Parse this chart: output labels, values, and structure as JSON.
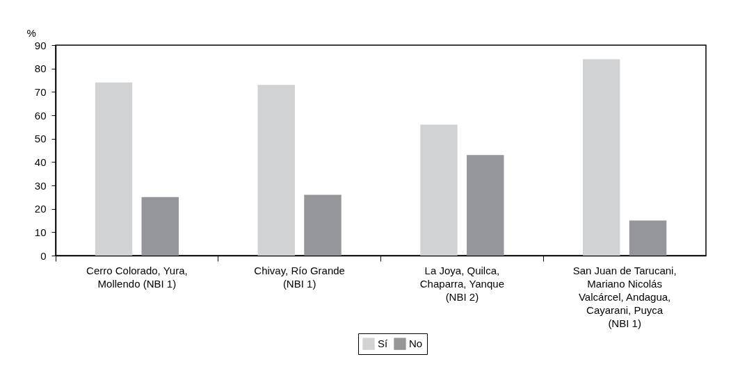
{
  "chart_data": {
    "type": "bar",
    "ylabel": "%",
    "categories": [
      "Cerro Colorado, Yura, Mollendo (NBI 1)",
      "Chivay, Río Grande (NBI 1)",
      "La Joya, Quilca, Chaparra, Yanque (NBI 2)",
      "San Juan de Tarucani, Mariano Nicolás Valcárcel, Andagua, Cayarani, Puyca (NBI 1)"
    ],
    "series": [
      {
        "name": "Sí",
        "color": "#d1d2d4",
        "values": [
          74,
          73,
          56,
          84
        ]
      },
      {
        "name": "No",
        "color": "#959699",
        "values": [
          25,
          26,
          43,
          15
        ]
      }
    ],
    "ylim": [
      0,
      90
    ],
    "yticks": [
      0,
      10,
      20,
      30,
      40,
      50,
      60,
      70,
      80,
      90
    ],
    "grid": false,
    "legend": "bottom"
  }
}
